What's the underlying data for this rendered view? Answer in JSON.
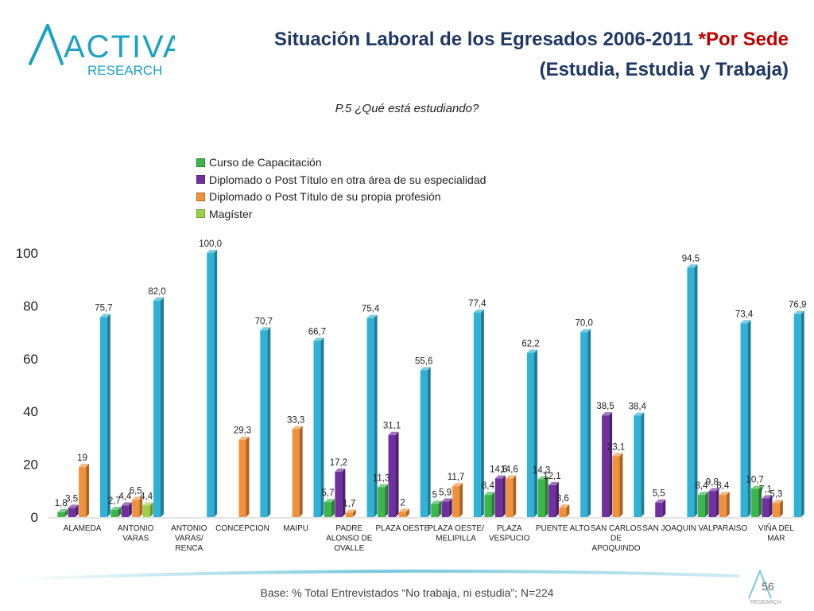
{
  "header": {
    "logo_text": "ACTIVA",
    "logo_sub": "RESEARCH",
    "title_part1": "Situación Laboral de los Egresados 2006-2011 ",
    "title_accent": "*Por Sede",
    "title_line2": "(Estudia, Estudia y Trabaja)"
  },
  "footer": {
    "base_note": "Base: % Total Entrevistados “No trabaja, ni estudia”; N=224",
    "page_number": "56",
    "mark_text": "RESEARCH"
  },
  "chart_data": {
    "type": "bar",
    "title": "P.5 ¿Qué está estudiando?",
    "xlabel": "",
    "ylabel": "",
    "ylim": [
      0,
      100
    ],
    "yticks": [
      "0",
      "20",
      "40",
      "60",
      "80",
      "100"
    ],
    "grid": false,
    "legend_position": "top-left",
    "categories": [
      [
        "ALAMEDA"
      ],
      [
        "ANTONIO",
        "VARAS"
      ],
      [
        "ANTONIO",
        "VARAS/",
        "RENCA"
      ],
      [
        "CONCEPCION"
      ],
      [
        "MAIPU"
      ],
      [
        "PADRE",
        "ALONSO DE",
        "OVALLE"
      ],
      [
        "PLAZA OESTE"
      ],
      [
        "PLAZA OESTE/",
        "MELIPILLA"
      ],
      [
        "PLAZA",
        "VESPUCIO"
      ],
      [
        "PUENTE ALTO"
      ],
      [
        "SAN CARLOS",
        "DE",
        "APOQUINDO"
      ],
      [
        "SAN JOAQUIN"
      ],
      [
        "VALPARAISO"
      ],
      [
        "VIÑA DEL",
        "MAR"
      ]
    ],
    "series": [
      {
        "name": "Curso de Capacitación",
        "color": "#3cb54a",
        "values": [
          1.8,
          2.7,
          null,
          null,
          null,
          5.7,
          11.3,
          5,
          8.4,
          14.3,
          null,
          null,
          8.4,
          10.7
        ],
        "labels": [
          "1,8",
          "2,7",
          "",
          "",
          "",
          "5,7",
          "11,3",
          "5",
          "8,4",
          "14,3",
          "",
          "",
          "8,4",
          "10,7"
        ]
      },
      {
        "name": "Diplomado o Post Título en otra área de su especialidad",
        "color": "#7030a0",
        "values": [
          3.5,
          4.4,
          null,
          null,
          null,
          17.2,
          31.1,
          5.9,
          14.6,
          12.1,
          38.5,
          5.5,
          9.8,
          7.1
        ],
        "labels": [
          "3,5",
          "4,4",
          "",
          "",
          "",
          "17,2",
          "31,1",
          "5,9",
          "14,6",
          "12,1",
          "38,5",
          "5,5",
          "9,8",
          "7,1"
        ]
      },
      {
        "name": "Diplomado o Post Título de su propia profesión",
        "color": "#f0923c",
        "values": [
          19,
          6.5,
          null,
          29.3,
          33.3,
          1.7,
          2,
          11.7,
          14.6,
          3.6,
          23.1,
          null,
          8.4,
          5.3
        ],
        "labels": [
          "19",
          "6,5",
          "",
          "29,3",
          "33,3",
          "1,7",
          "2",
          "11,7",
          "14,6",
          "3,6",
          "23,1",
          "",
          "8,4",
          "5,3"
        ]
      },
      {
        "name": "Magíster",
        "color": "#9bd148",
        "values": [
          null,
          4.4,
          null,
          null,
          null,
          null,
          null,
          null,
          null,
          null,
          null,
          null,
          null,
          null
        ],
        "labels": [
          "",
          "4,4",
          "",
          "",
          "",
          "",
          "",
          "",
          "",
          "",
          "",
          "",
          "",
          ""
        ]
      },
      {
        "name": "",
        "color": "#2fb2d6",
        "values": [
          75.7,
          82,
          100,
          70.7,
          66.7,
          75.4,
          55.6,
          77.4,
          62.2,
          70,
          38.4,
          94.5,
          73.4,
          76.9
        ],
        "labels": [
          "75,7",
          "82,0",
          "100,0",
          "70,7",
          "66,7",
          "75,4",
          "55,6",
          "77,4",
          "62,2",
          "70,0",
          "38,4",
          "94,5",
          "73,4",
          "76,9"
        ]
      }
    ]
  }
}
